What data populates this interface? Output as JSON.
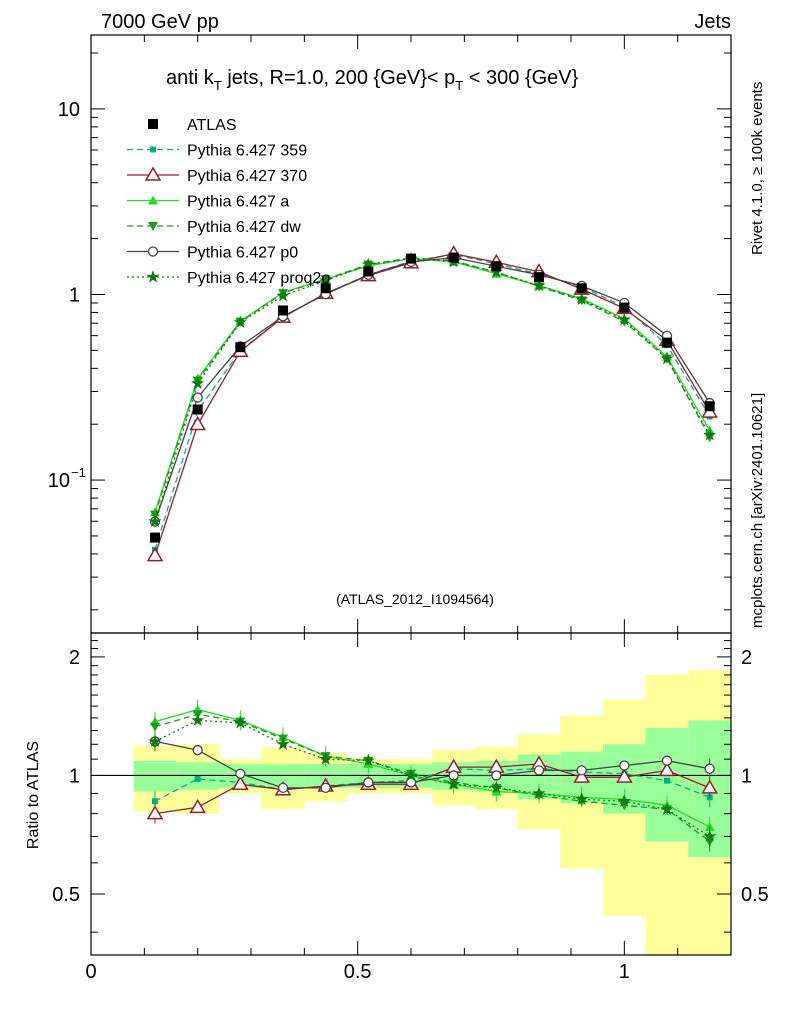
{
  "header": {
    "left": "7000 GeV pp",
    "right": "Jets"
  },
  "side": {
    "rivet": "Rivet 4.1.0, ≥ 100k events",
    "source": "mcplots.cern.ch [arXiv:2401.10621]"
  },
  "chart_data": {
    "type": "line",
    "title": "anti k_T jets, R=1.0,  200 {GeV}< p_T < 300 {GeV}",
    "title_parts": {
      "a": "anti k",
      "a_sub": "T",
      "b": " jets, R=1.0,  200 {GeV}< p",
      "b_sub": "T",
      "c": " < 300 {GeV}"
    },
    "analysis_label": "(ATLAS_2012_I1094564)",
    "xlabel": "",
    "ylabel_ratio": "Ratio to ATLAS",
    "xlim": [
      0,
      1.2
    ],
    "ylim_main": [
      0.015,
      25
    ],
    "ylim_ratio": [
      0.35,
      2.3
    ],
    "x_ticks": [
      {
        "value": 0,
        "label": "0"
      },
      {
        "value": 0.5,
        "label": "0.5"
      },
      {
        "value": 1,
        "label": "1"
      }
    ],
    "y_ticks_main": [
      {
        "value": 0.1,
        "base": "10",
        "exp": "−1"
      },
      {
        "value": 1,
        "base": "1",
        "exp": ""
      },
      {
        "value": 10,
        "base": "10",
        "exp": ""
      }
    ],
    "y_ticks_ratio": [
      {
        "value": 0.5,
        "label": "0.5"
      },
      {
        "value": 1,
        "label": "1"
      },
      {
        "value": 2,
        "label": "2"
      }
    ],
    "x": [
      0.12,
      0.2,
      0.28,
      0.36,
      0.44,
      0.52,
      0.6,
      0.68,
      0.76,
      0.84,
      0.92,
      1.0,
      1.08,
      1.16
    ],
    "bin_edges": [
      0.08,
      0.16,
      0.24,
      0.32,
      0.4,
      0.48,
      0.56,
      0.64,
      0.72,
      0.8,
      0.88,
      0.96,
      1.04,
      1.12,
      1.2
    ],
    "data": {
      "name": "ATLAS",
      "values": [
        0.049,
        0.24,
        0.52,
        0.82,
        1.08,
        1.33,
        1.56,
        1.58,
        1.42,
        1.24,
        1.08,
        0.85,
        0.55,
        0.25
      ],
      "band_green": [
        0.09,
        0.08,
        0.07,
        0.07,
        0.07,
        0.07,
        0.07,
        0.08,
        0.09,
        0.13,
        0.15,
        0.2,
        0.32,
        0.38
      ],
      "band_yellow": [
        0.19,
        0.2,
        0.1,
        0.18,
        0.14,
        0.1,
        0.1,
        0.16,
        0.18,
        0.27,
        0.42,
        0.56,
        0.8,
        0.85
      ]
    },
    "series": [
      {
        "name": "Pythia 6.427 359",
        "color": "#00b086",
        "dash": "6,4",
        "marker": "square-small",
        "ratio": [
          0.86,
          0.98,
          0.96,
          0.92,
          0.94,
          0.96,
          0.97,
          1.04,
          1.03,
          1.04,
          1.02,
          1.01,
          0.97,
          0.88
        ]
      },
      {
        "name": "Pythia 6.427 370",
        "color": "#9b1b30",
        "dash": "",
        "marker": "triangle-open",
        "ratio": [
          0.8,
          0.83,
          0.95,
          0.92,
          0.94,
          0.95,
          0.95,
          1.05,
          1.05,
          1.07,
          0.99,
          0.99,
          1.03,
          0.93
        ]
      },
      {
        "name": "Pythia 6.427 a",
        "color": "#22dd22",
        "dash": "",
        "marker": "triangle-up",
        "ratio": [
          1.37,
          1.47,
          1.38,
          1.25,
          1.12,
          1.07,
          1.0,
          0.95,
          0.91,
          0.9,
          0.88,
          0.87,
          0.84,
          0.74
        ]
      },
      {
        "name": "Pythia 6.427 dw",
        "color": "#1a9e1a",
        "dash": "6,4",
        "marker": "triangle-down",
        "ratio": [
          1.33,
          1.43,
          1.37,
          1.24,
          1.12,
          1.09,
          1.01,
          0.96,
          0.93,
          0.89,
          0.86,
          0.84,
          0.82,
          0.68
        ]
      },
      {
        "name": "Pythia 6.427 p0",
        "color": "#444444",
        "dash": "",
        "marker": "circle-open",
        "ratio": [
          1.22,
          1.16,
          1.01,
          0.93,
          0.93,
          0.96,
          0.96,
          1.0,
          1.0,
          1.03,
          1.03,
          1.06,
          1.09,
          1.04
        ]
      },
      {
        "name": "Pythia 6.427 proq2o",
        "color": "#137a13",
        "dash": "2,3",
        "marker": "star",
        "ratio": [
          1.22,
          1.38,
          1.36,
          1.2,
          1.1,
          1.09,
          1.0,
          0.95,
          0.93,
          0.9,
          0.87,
          0.86,
          0.82,
          0.7
        ]
      }
    ]
  }
}
